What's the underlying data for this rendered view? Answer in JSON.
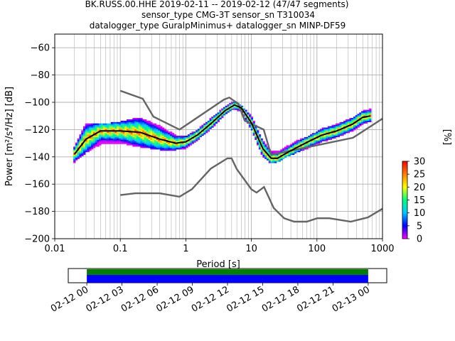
{
  "titles": [
    "BK.RUSS.00.HHE   2019-02-11 -- 2019-02-12  (47/47 segments)",
    "sensor_type CMG-3T sensor_sn T310034",
    "datalogger_type GuralpMinimus+ datalogger_sn MINP-DF59"
  ],
  "chart_data": [
    {
      "type": "heatmap",
      "title": "",
      "xlabel": "Period [s]",
      "ylabel": "Power [m²/s⁴/Hz] [dB]",
      "xscale": "log",
      "xlim": [
        0.01,
        1000
      ],
      "ylim": [
        -200,
        -50
      ],
      "xticks": [
        0.01,
        0.1,
        1,
        10,
        100,
        1000
      ],
      "xtick_labels": [
        "0.01",
        "0.1",
        "1",
        "10",
        "100",
        "1000"
      ],
      "yticks": [
        -200,
        -180,
        -160,
        -140,
        -120,
        -100,
        -80,
        -60
      ],
      "ytick_labels": [
        "−200",
        "−180",
        "−160",
        "−140",
        "−120",
        "−100",
        "−80",
        "−60"
      ],
      "grid": true,
      "colorbar": {
        "label": "[%]",
        "range": [
          0,
          30
        ],
        "ticks": [
          0,
          5,
          10,
          15,
          20,
          25,
          30
        ],
        "tick_labels": [
          "0",
          "5",
          "10",
          "15",
          "20",
          "25",
          "30"
        ],
        "colormap": [
          "#ff00ff",
          "#0000ff",
          "#00c8ff",
          "#00ff80",
          "#ffff00",
          "#ff8000",
          "#ff0000"
        ]
      },
      "series": [
        {
          "role": "mode",
          "color": "#000000",
          "x": [
            0.02,
            0.03,
            0.05,
            0.1,
            0.2,
            0.4,
            0.7,
            1.0,
            1.5,
            2.5,
            4,
            5.5,
            7,
            10,
            15,
            20,
            25,
            35,
            50,
            80,
            120,
            200,
            350,
            500,
            650
          ],
          "y": [
            -138,
            -127,
            -121,
            -121,
            -122,
            -127,
            -130,
            -129,
            -124,
            -115,
            -106,
            -102,
            -104,
            -115,
            -134,
            -141,
            -141,
            -137,
            -133,
            -128,
            -124,
            -121,
            -116,
            -111,
            -110
          ]
        },
        {
          "role": "high_noise_model",
          "color": "#646464",
          "x": [
            0.1,
            0.22,
            0.32,
            0.8,
            3.8,
            4.6,
            6.3,
            7.9,
            15.4,
            20,
            354.8,
            1000
          ],
          "y": [
            -91.5,
            -97.4,
            -110.5,
            -120,
            -98,
            -96.5,
            -101,
            -113.5,
            -120,
            -138.5,
            -126,
            -112
          ]
        },
        {
          "role": "low_noise_model",
          "color": "#646464",
          "x": [
            0.1,
            0.17,
            0.4,
            0.8,
            1.24,
            2.4,
            4.3,
            5,
            6,
            10,
            12,
            15.6,
            21.9,
            31.6,
            45,
            70,
            101,
            154,
            328,
            600,
            1000
          ],
          "y": [
            -168,
            -166.7,
            -166.7,
            -169.2,
            -163.7,
            -148.6,
            -141.1,
            -141.1,
            -149,
            -163.8,
            -166.2,
            -162.1,
            -177.5,
            -185,
            -187.5,
            -187.5,
            -185,
            -185,
            -187.5,
            -184.4,
            -178
          ]
        },
        {
          "role": "psd_spread_upper",
          "x": [
            0.02,
            0.03,
            0.05,
            0.1,
            0.2,
            0.4,
            0.7,
            1.0,
            1.5,
            2.5,
            4,
            5.5,
            7,
            10,
            15,
            20,
            25,
            35,
            50,
            80,
            120,
            200,
            350,
            500,
            650
          ],
          "y": [
            -133,
            -115,
            -116,
            -114,
            -111,
            -117,
            -124,
            -125,
            -120,
            -111,
            -103,
            -99,
            -102,
            -110,
            -128,
            -136,
            -136,
            -132,
            -128,
            -124,
            -119,
            -116,
            -111,
            -106,
            -105
          ]
        },
        {
          "role": "psd_spread_lower",
          "x": [
            0.02,
            0.03,
            0.05,
            0.1,
            0.2,
            0.4,
            0.7,
            1.0,
            1.5,
            2.5,
            4,
            5.5,
            7,
            10,
            15,
            20,
            25,
            35,
            50,
            80,
            120,
            200,
            350,
            500,
            650
          ],
          "y": [
            -144,
            -137,
            -131,
            -130,
            -133,
            -135,
            -135,
            -134,
            -128,
            -119,
            -109,
            -105,
            -107,
            -120,
            -140,
            -145,
            -144,
            -140,
            -137,
            -133,
            -129,
            -126,
            -121,
            -116,
            -114
          ]
        }
      ]
    },
    {
      "type": "timeline",
      "title": "",
      "xlim": [
        "2019-02-11 22:25",
        "2019-02-13 01:35"
      ],
      "covered": [
        "2019-02-12 00:00",
        "2019-02-13 00:00"
      ],
      "xtick_labels": [
        "02-12 00",
        "02-12 03",
        "02-12 06",
        "02-12 09",
        "02-12 12",
        "02-12 15",
        "02-12 18",
        "02-12 21",
        "02-13 00"
      ],
      "bars": [
        {
          "role": "data",
          "color": "#008000"
        },
        {
          "role": "psd",
          "color": "#0000ff"
        }
      ]
    }
  ]
}
